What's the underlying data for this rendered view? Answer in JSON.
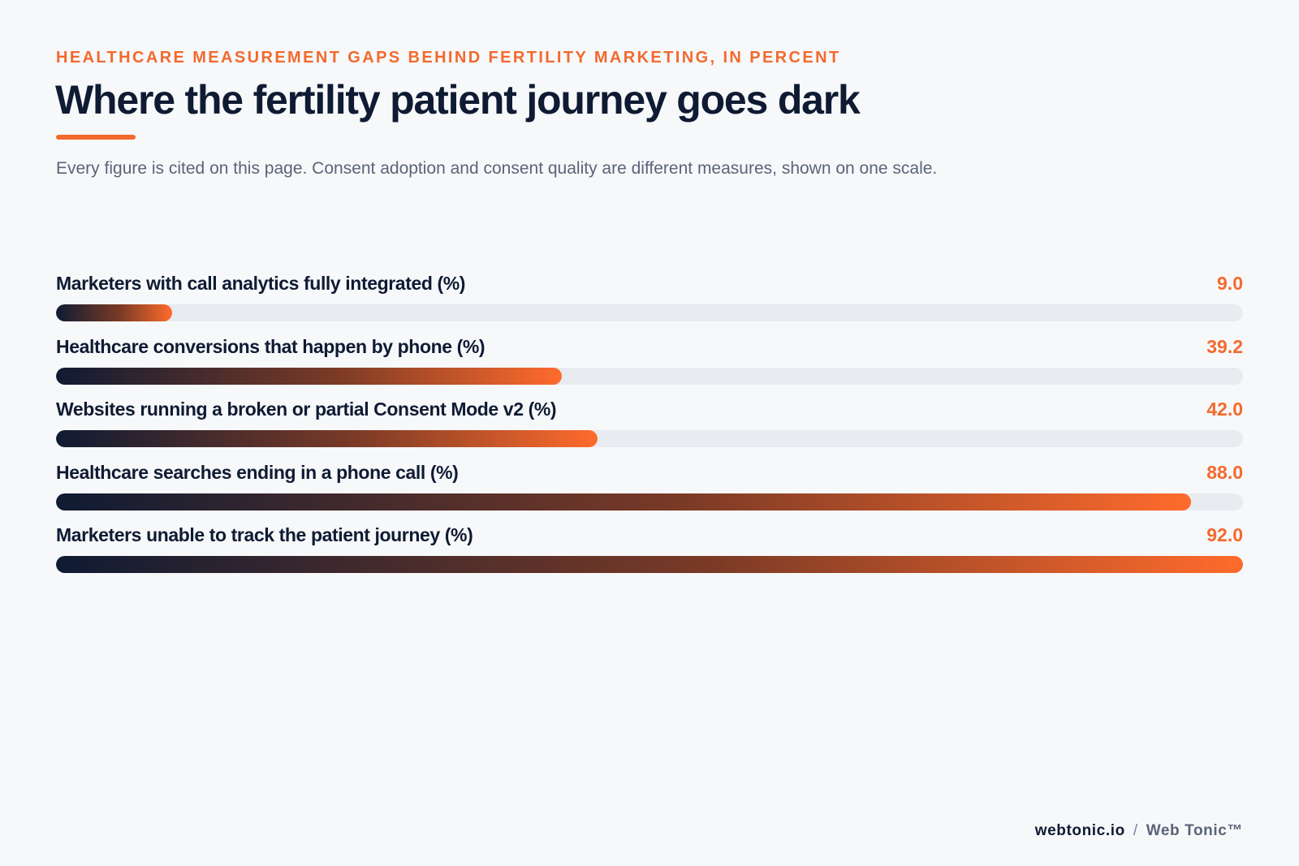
{
  "header": {
    "kicker": "HEALTHCARE MEASUREMENT GAPS BEHIND FERTILITY MARKETING, IN PERCENT",
    "title": "Where the fertility patient journey goes dark",
    "subtitle": "Every figure is cited on this page. Consent adoption and consent quality are different measures, shown on one scale."
  },
  "colors": {
    "accent": "#f26a2e",
    "ink": "#0f1b33",
    "track": "#e8ebef",
    "gradient_start": "#0f1b33",
    "gradient_end": "#ff6b2c"
  },
  "chart_data": {
    "type": "bar",
    "orientation": "horizontal",
    "categories": [
      "Marketers with call analytics fully integrated (%)",
      "Healthcare conversions that happen by phone (%)",
      "Websites running a broken or partial Consent Mode v2 (%)",
      "Healthcare searches ending in a phone call (%)",
      "Marketers unable to track the patient journey (%)"
    ],
    "values": [
      9.0,
      39.2,
      42.0,
      88.0,
      92.0
    ],
    "value_labels": [
      "9.0",
      "39.2",
      "42.0",
      "88.0",
      "92.0"
    ],
    "xlim": [
      0,
      92
    ],
    "grid": false,
    "legend": "none"
  },
  "footer": {
    "site": "webtonic.io",
    "separator": "/",
    "brand": "Web Tonic™"
  }
}
